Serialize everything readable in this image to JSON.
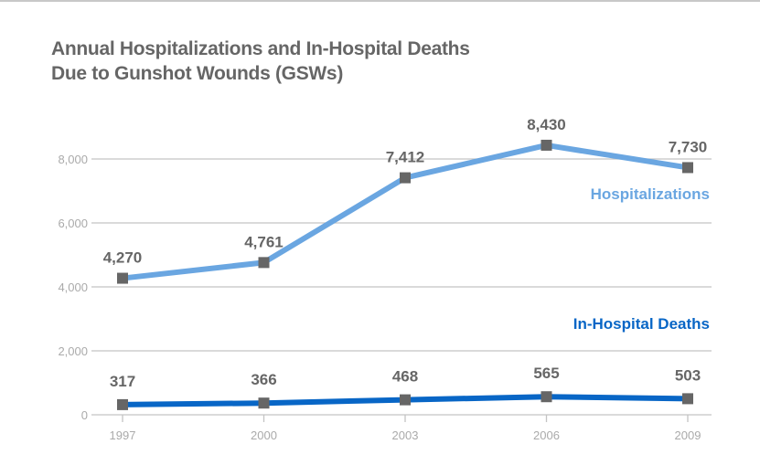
{
  "chart_data": {
    "type": "line",
    "title_line1": "Annual Hospitalizations and In-Hospital Deaths",
    "title_line2": "Due to Gunshot Wounds (GSWs)",
    "x": [
      "1997",
      "2000",
      "2003",
      "2006",
      "2009"
    ],
    "yticks": [
      0,
      2000,
      4000,
      6000,
      8000
    ],
    "ytick_labels": [
      "0",
      "2,000",
      "4,000",
      "6,000",
      "8,000"
    ],
    "ylim": [
      0,
      8600
    ],
    "grid": true,
    "series": [
      {
        "name": "Hospitalizations",
        "color": "#6aa6e1",
        "values": [
          4270,
          4761,
          7412,
          8430,
          7730
        ],
        "labels": [
          "4,270",
          "4,761",
          "7,412",
          "8,430",
          "7,730"
        ]
      },
      {
        "name": "In-Hospital Deaths",
        "color": "#0866c6",
        "values": [
          317,
          366,
          468,
          565,
          503
        ],
        "labels": [
          "317",
          "366",
          "468",
          "565",
          "503"
        ]
      }
    ],
    "marker_color": "#666666"
  }
}
